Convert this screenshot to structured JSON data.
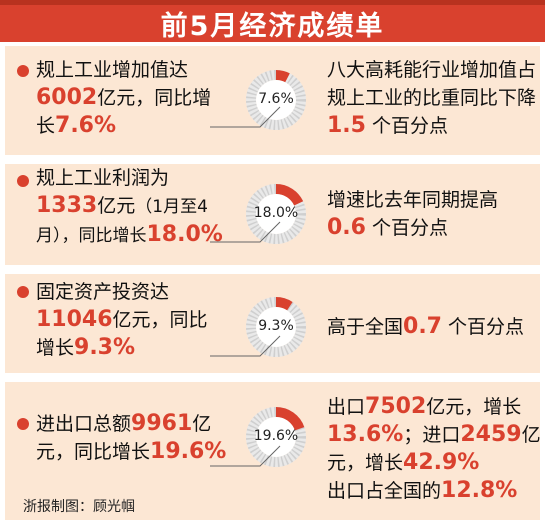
{
  "title": "前5月经济成绩单",
  "credit": "浙报制图：顾光帼",
  "colors": {
    "accent": "#d9412e",
    "panel": "#fce7d4",
    "ring_base": "#e9e9e9",
    "ring_hatch": "#cfcfcf"
  },
  "chart_data": {
    "type": "pie",
    "title": "前5月经济成绩单",
    "items": [
      {
        "pct_label": "7.6%",
        "value": 7.6,
        "left": [
          "规上工业增加值达",
          "6002",
          "亿元，同比增",
          "长",
          "7.6%"
        ],
        "right": [
          "八大高耗能行业增加值占",
          "规上工业的比重同比下降",
          "1.5",
          "个百分点"
        ]
      },
      {
        "pct_label": "18.0%",
        "value": 18.0,
        "left": [
          "规上工业利润为",
          "1333",
          "亿元",
          "（1月至4",
          "月），同比增长",
          "18.0%"
        ],
        "right": [
          "增速比去年同期提高",
          "0.6",
          "个百分点"
        ]
      },
      {
        "pct_label": "9.3%",
        "value": 9.3,
        "left": [
          "固定资产投资达",
          "11046",
          "亿元，同比",
          "增长",
          "9.3%"
        ],
        "right": [
          "高于全国",
          "0.7",
          "个百分点"
        ]
      },
      {
        "pct_label": "19.6%",
        "value": 19.6,
        "left": [
          "进出口总额",
          "9961",
          "亿",
          "元，同比增长",
          "19.6%"
        ],
        "right": [
          "出口",
          "7502",
          "亿元，增长",
          "13.6%",
          "；进口",
          "2459",
          "亿",
          "元，增长",
          "42.9%",
          "出口占全国的",
          "12.8%"
        ]
      }
    ]
  }
}
